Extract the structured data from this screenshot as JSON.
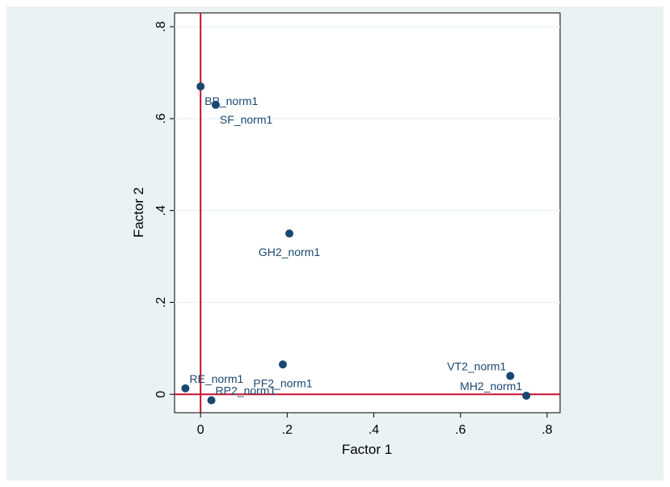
{
  "chart_data": {
    "type": "scatter",
    "title": "",
    "xlabel": "Factor 1",
    "ylabel": "Factor 2",
    "xlim": [
      -0.06,
      0.83
    ],
    "ylim": [
      -0.04,
      0.83
    ],
    "xticks": [
      0,
      0.2,
      0.4,
      0.6,
      0.8
    ],
    "yticks": [
      0,
      0.2,
      0.4,
      0.6,
      0.8
    ],
    "xtick_labels": [
      "0",
      ".2",
      ".4",
      ".6",
      ".8"
    ],
    "ytick_labels": [
      "0",
      ".2",
      ".4",
      ".6",
      ".8"
    ],
    "grid": true,
    "reference_lines": {
      "x": 0,
      "y": 0,
      "color": "#c8102e"
    },
    "marker_color": "#1a476f",
    "points": [
      {
        "label": "BP_norm1",
        "x": 0.0,
        "y": 0.67,
        "label_pos": "below-right"
      },
      {
        "label": "SF_norm1",
        "x": 0.035,
        "y": 0.63,
        "label_pos": "below-right"
      },
      {
        "label": "GH2_norm1",
        "x": 0.205,
        "y": 0.35,
        "label_pos": "below"
      },
      {
        "label": "PF2_norm1",
        "x": 0.19,
        "y": 0.065,
        "label_pos": "below"
      },
      {
        "label": "RE_norm1",
        "x": -0.035,
        "y": 0.013,
        "label_pos": "above-right"
      },
      {
        "label": "RP2_norm1",
        "x": 0.025,
        "y": -0.013,
        "label_pos": "above-right"
      },
      {
        "label": "VT2_norm1",
        "x": 0.715,
        "y": 0.04,
        "label_pos": "above-left"
      },
      {
        "label": "MH2_norm1",
        "x": 0.752,
        "y": -0.003,
        "label_pos": "above-left"
      }
    ]
  }
}
